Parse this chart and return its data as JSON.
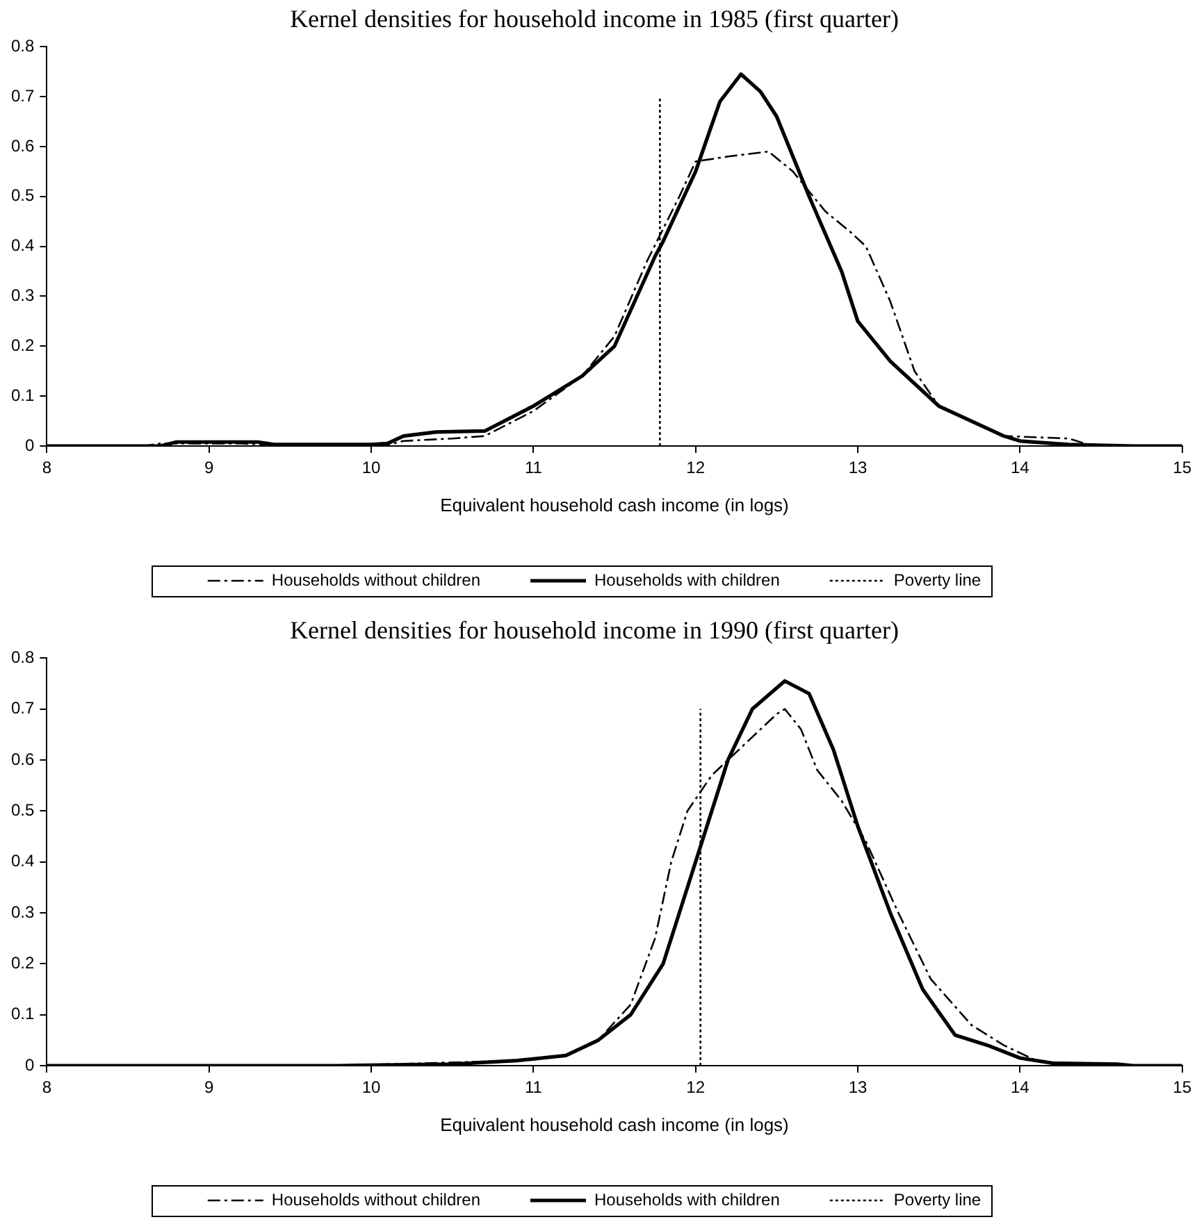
{
  "chart_data": [
    {
      "type": "line",
      "title": "Kernel densities for household income in 1985 (first quarter)",
      "xlabel": "Equivalent household cash income (in logs)",
      "xlim": [
        8,
        15
      ],
      "xticks": [
        8,
        9,
        10,
        11,
        12,
        13,
        14,
        15
      ],
      "ylim": [
        0,
        0.8
      ],
      "yticks": [
        0,
        0.1,
        0.2,
        0.3,
        0.4,
        0.5,
        0.6,
        0.7,
        0.8
      ],
      "grid": false,
      "legend": "bottom",
      "marker": "none",
      "series": [
        {
          "name": "Households without children",
          "color": "#000000",
          "line_style": "dashed",
          "x": [
            8,
            8.6,
            8.7,
            9.2,
            9.4,
            10.1,
            10.2,
            10.5,
            10.7,
            11.0,
            11.3,
            11.5,
            11.7,
            11.9,
            12.0,
            12.2,
            12.45,
            12.6,
            12.8,
            12.95,
            13.05,
            13.2,
            13.35,
            13.5,
            13.7,
            13.9,
            14.3,
            14.45,
            15
          ],
          "values": [
            0,
            0,
            0.005,
            0.005,
            0.002,
            0.002,
            0.01,
            0.015,
            0.02,
            0.07,
            0.14,
            0.22,
            0.37,
            0.5,
            0.57,
            0.58,
            0.59,
            0.55,
            0.47,
            0.43,
            0.4,
            0.29,
            0.15,
            0.08,
            0.05,
            0.02,
            0.015,
            0,
            0
          ]
        },
        {
          "name": "Households with children",
          "color": "#000000",
          "line_style": "solid",
          "x": [
            8,
            8.7,
            8.8,
            9.3,
            9.4,
            10.0,
            10.1,
            10.2,
            10.4,
            10.7,
            11.0,
            11.3,
            11.5,
            11.75,
            11.8,
            12.0,
            12.15,
            12.28,
            12.4,
            12.5,
            12.7,
            12.9,
            13.0,
            13.2,
            13.5,
            13.7,
            13.9,
            14.0,
            14.3,
            14.7,
            15
          ],
          "values": [
            0,
            0,
            0.008,
            0.008,
            0.003,
            0.003,
            0.005,
            0.02,
            0.028,
            0.03,
            0.08,
            0.14,
            0.2,
            0.38,
            0.41,
            0.55,
            0.69,
            0.745,
            0.71,
            0.66,
            0.5,
            0.35,
            0.25,
            0.17,
            0.08,
            0.05,
            0.02,
            0.01,
            0.003,
            0,
            0
          ]
        },
        {
          "name": "Poverty line",
          "color": "#000000",
          "line_style": "dotted",
          "x": [
            11.78,
            11.78
          ],
          "values": [
            0,
            0.7
          ]
        }
      ]
    },
    {
      "type": "line",
      "title": "Kernel densities for household income in 1990 (first quarter)",
      "xlabel": "Equivalent household cash income (in logs)",
      "xlim": [
        8,
        15
      ],
      "xticks": [
        8,
        9,
        10,
        11,
        12,
        13,
        14,
        15
      ],
      "ylim": [
        0,
        0.8
      ],
      "yticks": [
        0,
        0.1,
        0.2,
        0.3,
        0.4,
        0.5,
        0.6,
        0.7,
        0.8
      ],
      "grid": false,
      "legend": "bottom",
      "marker": "none",
      "series": [
        {
          "name": "Households without children",
          "color": "#000000",
          "line_style": "dashed",
          "x": [
            8,
            9.8,
            10.9,
            11.2,
            11.4,
            11.6,
            11.75,
            11.85,
            11.95,
            12.1,
            12.3,
            12.5,
            12.55,
            12.65,
            12.75,
            12.9,
            13.05,
            13.25,
            13.45,
            13.7,
            13.9,
            14.1,
            14.3,
            15
          ],
          "values": [
            0,
            0,
            0.01,
            0.02,
            0.05,
            0.12,
            0.25,
            0.4,
            0.5,
            0.57,
            0.63,
            0.69,
            0.7,
            0.66,
            0.58,
            0.52,
            0.44,
            0.3,
            0.17,
            0.08,
            0.04,
            0.01,
            0,
            0
          ]
        },
        {
          "name": "Households with children",
          "color": "#000000",
          "line_style": "solid",
          "x": [
            8,
            9.8,
            10.5,
            10.9,
            11.2,
            11.4,
            11.6,
            11.8,
            12.0,
            12.2,
            12.35,
            12.55,
            12.7,
            12.85,
            13.0,
            13.2,
            13.4,
            13.6,
            13.8,
            14.0,
            14.2,
            14.6,
            14.7,
            15
          ],
          "values": [
            0,
            0,
            0.003,
            0.01,
            0.02,
            0.05,
            0.1,
            0.2,
            0.4,
            0.6,
            0.7,
            0.755,
            0.73,
            0.62,
            0.47,
            0.3,
            0.15,
            0.06,
            0.04,
            0.015,
            0.005,
            0.003,
            0,
            0
          ]
        },
        {
          "name": "Poverty line",
          "color": "#000000",
          "line_style": "dotted",
          "x": [
            12.03,
            12.03
          ],
          "values": [
            0,
            0.7
          ]
        }
      ]
    }
  ]
}
